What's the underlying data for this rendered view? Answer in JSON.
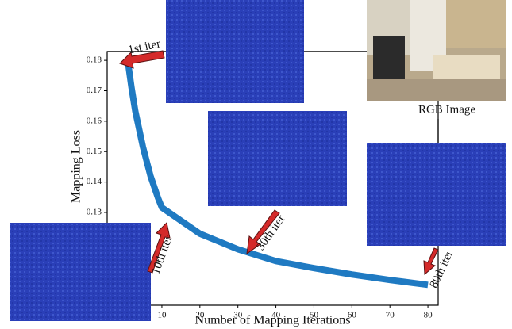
{
  "chart_data": {
    "type": "line",
    "x_label": "Number of Mapping Iterations",
    "y_label": "Mapping Loss",
    "x": [
      1,
      2,
      3,
      5,
      7,
      9,
      10,
      20,
      30,
      40,
      50,
      60,
      70,
      80
    ],
    "series": [
      {
        "name": "Mapping Loss",
        "color": "#1f7ac2",
        "values": [
          0.18,
          0.1711,
          0.1633,
          0.1516,
          0.142,
          0.1347,
          0.1316,
          0.123,
          0.1179,
          0.114,
          0.1117,
          0.1096,
          0.1078,
          0.1062
        ]
      }
    ],
    "xlim": [
      -4.4,
      82.7
    ],
    "ylim": [
      0.0995,
      0.1829
    ],
    "xticks": [
      10,
      20,
      30,
      40,
      50,
      60,
      70,
      80
    ],
    "yticks": [
      0.13,
      0.14,
      0.15,
      0.16,
      0.17,
      0.18
    ],
    "annotations": [
      "1st iter",
      "10th iter",
      "30th iter",
      "80th iter",
      "RGB Image"
    ]
  }
}
